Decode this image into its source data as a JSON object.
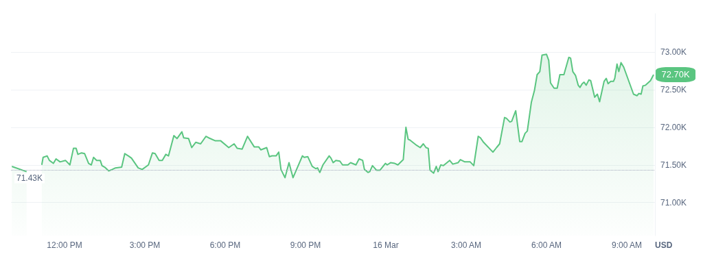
{
  "chart_data": {
    "type": "area",
    "ylabel": "USD",
    "marker": "none",
    "grid": "y",
    "xlim": [
      "--03-15T10:00",
      "--03-16T10:03"
    ],
    "ylim": [
      70.56,
      73.51
    ],
    "xticks": [
      {
        "value": "--03-15T12:00",
        "label": "12:00 PM"
      },
      {
        "value": "--03-15T15:00",
        "label": "3:00 PM"
      },
      {
        "value": "--03-15T18:00",
        "label": "6:00 PM"
      },
      {
        "value": "--03-15T21:00",
        "label": "9:00 PM"
      },
      {
        "value": "--03-16T00:00",
        "label": "16 Mar"
      },
      {
        "value": "--03-16T03:00",
        "label": "3:00 AM"
      },
      {
        "value": "--03-16T06:00",
        "label": "6:00 AM"
      },
      {
        "value": "--03-16T09:00",
        "label": "9:00 AM"
      }
    ],
    "yticks": [
      {
        "value": 71,
        "label": "71.00K"
      },
      {
        "value": 71.5,
        "label": "71.50K"
      },
      {
        "value": 72,
        "label": "72.00K"
      },
      {
        "value": 72.5,
        "label": "72.50K"
      },
      {
        "value": 73,
        "label": "73.00K"
      }
    ],
    "ref_lines": [
      {
        "axis": "y",
        "value": 71.43,
        "label": "71.43K",
        "color": "#a1a7bb",
        "line_style": "dotted"
      }
    ],
    "annotations": [
      {
        "text": "72.70K",
        "x": "--03-16T10:00",
        "y": 72.7
      }
    ],
    "series": [
      {
        "color": "#5ac580",
        "x": [
          "--03-15T10:02",
          "--03-15T10:35",
          "--03-15T10:57",
          "--03-15T11:09",
          "--03-15T11:12",
          "--03-15T11:21",
          "--03-15T11:26",
          "--03-15T11:35",
          "--03-15T11:41",
          "--03-15T11:50",
          "--03-15T12:02",
          "--03-15T12:12",
          "--03-15T12:20",
          "--03-15T12:26",
          "--03-15T12:30",
          "--03-15T12:38",
          "--03-15T12:45",
          "--03-15T12:54",
          "--03-15T13:00",
          "--03-15T13:05",
          "--03-15T13:12",
          "--03-15T13:20",
          "--03-15T13:24",
          "--03-15T13:30",
          "--03-15T13:39",
          "--03-15T13:47",
          "--03-15T13:54",
          "--03-15T14:08",
          "--03-15T14:15",
          "--03-15T14:23",
          "--03-15T14:30",
          "--03-15T14:45",
          "--03-15T14:54",
          "--03-15T15:08",
          "--03-15T15:17",
          "--03-15T15:23",
          "--03-15T15:32",
          "--03-15T15:39",
          "--03-15T15:47",
          "--03-15T15:53",
          "--03-15T16:05",
          "--03-15T16:12",
          "--03-15T16:23",
          "--03-15T16:27",
          "--03-15T16:38",
          "--03-15T16:45",
          "--03-15T16:54",
          "--03-15T17:05",
          "--03-15T17:17",
          "--03-15T17:23",
          "--03-15T17:38",
          "--03-15T17:50",
          "--03-15T18:08",
          "--03-15T18:20",
          "--03-15T18:27",
          "--03-15T18:38",
          "--03-15T18:50",
          "--03-15T19:05",
          "--03-15T19:15",
          "--03-15T19:20",
          "--03-15T19:33",
          "--03-15T19:39",
          "--03-15T19:45",
          "--03-15T19:54",
          "--03-15T20:00",
          "--03-15T20:05",
          "--03-15T20:14",
          "--03-15T20:23",
          "--03-15T20:32",
          "--03-15T20:53",
          "--03-15T20:57",
          "--03-15T21:05",
          "--03-15T21:15",
          "--03-15T21:23",
          "--03-15T21:27",
          "--03-15T21:32",
          "--03-15T21:39",
          "--03-15T21:53",
          "--03-15T21:57",
          "--03-15T22:02",
          "--03-15T22:08",
          "--03-15T22:17",
          "--03-15T22:23",
          "--03-15T22:35",
          "--03-15T22:41",
          "--03-15T22:53",
          "--03-15T23:00",
          "--03-15T23:08",
          "--03-15T23:12",
          "--03-15T23:20",
          "--03-15T23:24",
          "--03-15T23:30",
          "--03-15T23:39",
          "--03-15T23:47",
          "--03-15T23:59",
          "--03-16T00:03",
          "--03-16T00:11",
          "--03-16T00:20",
          "--03-16T00:27",
          "--03-16T00:39",
          "--03-16T00:45",
          "--03-16T00:50",
          "--03-16T00:54",
          "--03-16T01:09",
          "--03-16T01:17",
          "--03-16T01:24",
          "--03-16T01:30",
          "--03-16T01:35",
          "--03-16T01:39",
          "--03-16T01:47",
          "--03-16T01:53",
          "--03-16T01:57",
          "--03-16T02:03",
          "--03-16T02:09",
          "--03-16T02:23",
          "--03-16T02:30",
          "--03-16T02:42",
          "--03-16T02:47",
          "--03-16T02:57",
          "--03-16T03:09",
          "--03-16T03:17",
          "--03-16T03:27",
          "--03-16T03:32",
          "--03-16T03:39",
          "--03-16T04:00",
          "--03-16T04:08",
          "--03-16T04:15",
          "--03-16T04:26",
          "--03-16T04:30",
          "--03-16T04:38",
          "--03-16T04:42",
          "--03-16T04:51",
          "--03-16T05:00",
          "--03-16T05:05",
          "--03-16T05:12",
          "--03-16T05:17",
          "--03-16T05:26",
          "--03-16T05:33",
          "--03-16T05:39",
          "--03-16T05:45",
          "--03-16T05:50",
          "--03-16T06:00",
          "--03-16T06:05",
          "--03-16T06:09",
          "--03-16T06:17",
          "--03-16T06:24",
          "--03-16T06:30",
          "--03-16T06:39",
          "--03-16T06:50",
          "--03-16T06:54",
          "--03-16T06:59",
          "--03-16T07:05",
          "--03-16T07:11",
          "--03-16T07:15",
          "--03-16T07:20",
          "--03-16T07:24",
          "--03-16T07:29",
          "--03-16T07:35",
          "--03-16T07:39",
          "--03-16T07:48",
          "--03-16T07:54",
          "--03-16T07:59",
          "--03-16T08:09",
          "--03-16T08:14",
          "--03-16T08:18",
          "--03-16T08:24",
          "--03-16T08:30",
          "--03-16T08:33",
          "--03-16T08:38",
          "--03-16T08:42",
          "--03-16T08:47",
          "--03-16T08:53",
          "--03-16T09:15",
          "--03-16T09:23",
          "--03-16T09:27",
          "--03-16T09:32",
          "--03-16T09:36",
          "--03-16T09:42",
          "--03-16T09:53",
          "--03-16T10:00"
        ],
        "values": [
          71.48,
          71.41,
          null,
          71.5,
          71.6,
          71.62,
          71.56,
          71.52,
          71.58,
          71.54,
          71.56,
          71.5,
          71.72,
          71.72,
          71.64,
          71.66,
          71.65,
          71.52,
          71.5,
          71.6,
          71.56,
          71.56,
          71.49,
          71.47,
          71.42,
          71.44,
          71.46,
          71.47,
          71.65,
          71.62,
          71.59,
          71.46,
          71.44,
          71.5,
          71.66,
          71.65,
          71.56,
          71.56,
          71.64,
          71.62,
          71.89,
          71.85,
          71.94,
          71.86,
          71.85,
          71.73,
          71.8,
          71.78,
          71.88,
          71.86,
          71.82,
          71.82,
          71.73,
          71.78,
          71.72,
          71.71,
          71.88,
          71.74,
          71.74,
          71.7,
          71.73,
          71.61,
          71.62,
          71.62,
          71.67,
          71.44,
          71.33,
          71.53,
          71.33,
          71.62,
          71.6,
          71.61,
          71.48,
          71.45,
          71.46,
          71.4,
          71.5,
          71.62,
          71.59,
          71.53,
          71.56,
          71.55,
          71.5,
          71.5,
          71.53,
          71.5,
          71.58,
          71.56,
          71.44,
          71.4,
          71.41,
          71.49,
          71.43,
          71.43,
          71.52,
          71.5,
          71.53,
          71.52,
          71.5,
          71.57,
          72.0,
          71.84,
          71.83,
          71.76,
          71.73,
          71.78,
          71.73,
          71.72,
          71.43,
          71.39,
          71.48,
          71.41,
          71.5,
          71.49,
          71.56,
          71.51,
          71.53,
          71.57,
          71.54,
          71.54,
          71.49,
          71.88,
          71.86,
          71.8,
          71.67,
          71.73,
          71.78,
          72.13,
          72.12,
          72.07,
          72.08,
          72.22,
          71.81,
          71.81,
          71.92,
          71.95,
          72.33,
          72.49,
          72.7,
          72.74,
          72.96,
          72.97,
          72.89,
          72.59,
          72.52,
          72.52,
          72.7,
          72.7,
          72.93,
          72.92,
          72.74,
          72.69,
          72.56,
          72.53,
          72.58,
          72.6,
          72.56,
          72.63,
          72.62,
          72.4,
          72.44,
          72.34,
          72.61,
          72.65,
          72.58,
          72.61,
          72.61,
          72.65,
          72.84,
          72.74,
          72.86,
          72.8,
          72.44,
          72.42,
          72.45,
          72.44,
          72.55,
          72.56,
          72.62,
          72.7
        ]
      }
    ]
  }
}
